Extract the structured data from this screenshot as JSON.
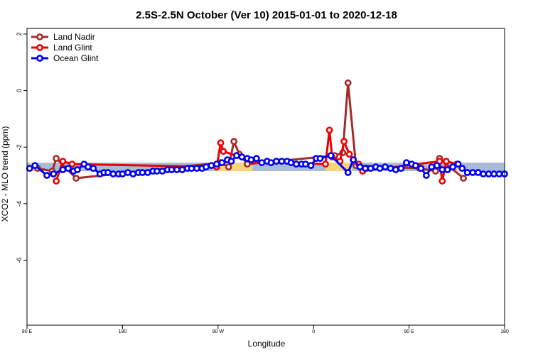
{
  "chart_data": {
    "type": "line",
    "title": "2.5S-2.5N October (Ver 10)   2015-01-01 to 2020-12-18",
    "xlabel": "Longitude",
    "ylabel": "XCO2 - MLO trend (ppm)",
    "xlim": [
      0,
      360
    ],
    "ylim": [
      -8.3,
      2.2
    ],
    "yticks": [
      2,
      0,
      -2,
      -4,
      -6
    ],
    "ytick_labels": [
      "2",
      "0",
      "-2",
      "-4",
      "-6"
    ],
    "xticks": [
      0,
      72,
      144,
      216,
      288,
      360
    ],
    "xtick_labels": [
      "90 E",
      "180",
      "90 W",
      "0",
      "90 E",
      "180"
    ],
    "legend_position": "top-left",
    "background_band": {
      "ymin": -2.85,
      "ymax": -2.55,
      "color": "#a8bcd8",
      "land_color": "#f5d77a",
      "land_segments": [
        [
          2,
          8
        ],
        [
          143,
          170
        ],
        [
          225,
          245
        ],
        [
          302,
          310
        ],
        [
          320,
          328
        ]
      ]
    },
    "series": [
      {
        "name": "Land Nadir",
        "color": "#a52a2a",
        "x": [
          8,
          19,
          22,
          37,
          146,
          152,
          156,
          160,
          166,
          232,
          238,
          242,
          248,
          296,
          308,
          311,
          329
        ],
        "y": [
          -2.75,
          -2.85,
          -2.4,
          -3.1,
          -2.55,
          -2.7,
          -1.8,
          -2.25,
          -2.6,
          -2.3,
          -2.2,
          0.27,
          -2.65,
          -2.75,
          -2.85,
          -2.4,
          -3.1
        ]
      },
      {
        "name": "Land Glint",
        "color": "#ee0000",
        "x": [
          22,
          27,
          34,
          143,
          146,
          148,
          170,
          225,
          228,
          230,
          236,
          239,
          243,
          246,
          250,
          253,
          311,
          313,
          316,
          324
        ],
        "y": [
          -3.2,
          -2.5,
          -2.6,
          -2.7,
          -1.85,
          -2.15,
          -2.5,
          -2.6,
          -1.4,
          -2.35,
          -2.5,
          -1.8,
          -2.25,
          -2.45,
          -2.6,
          -2.85,
          -2.5,
          -3.2,
          -2.5,
          -2.6
        ]
      },
      {
        "name": "Ocean Glint",
        "color": "#0000ee",
        "x": [
          2,
          6,
          15,
          20,
          27,
          31,
          35,
          38,
          43,
          46,
          50,
          55,
          58,
          61,
          65,
          69,
          72,
          76,
          80,
          84,
          87,
          91,
          95,
          98,
          102,
          106,
          109,
          113,
          117,
          121,
          124,
          128,
          132,
          135,
          139,
          143,
          147,
          151,
          154,
          158,
          162,
          166,
          169,
          173,
          177,
          181,
          184,
          188,
          192,
          196,
          199,
          203,
          207,
          210,
          214,
          218,
          221,
          229,
          242,
          246,
          251,
          255,
          259,
          263,
          266,
          270,
          274,
          278,
          282,
          286,
          290,
          293,
          297,
          301,
          305,
          309,
          313,
          317,
          321,
          325,
          328,
          332,
          336,
          340,
          344,
          348,
          352,
          356,
          360
        ],
        "y": [
          -2.75,
          -2.65,
          -3.0,
          -2.95,
          -2.8,
          -2.75,
          -2.85,
          -2.8,
          -2.6,
          -2.7,
          -2.75,
          -2.95,
          -2.9,
          -2.9,
          -2.95,
          -2.95,
          -2.95,
          -2.9,
          -2.95,
          -2.9,
          -2.9,
          -2.9,
          -2.85,
          -2.85,
          -2.85,
          -2.8,
          -2.8,
          -2.8,
          -2.8,
          -2.75,
          -2.75,
          -2.75,
          -2.75,
          -2.7,
          -2.65,
          -2.6,
          -2.55,
          -2.45,
          -2.5,
          -2.3,
          -2.35,
          -2.4,
          -2.45,
          -2.4,
          -2.55,
          -2.5,
          -2.55,
          -2.5,
          -2.5,
          -2.5,
          -2.55,
          -2.6,
          -2.6,
          -2.6,
          -2.65,
          -2.4,
          -2.4,
          -2.3,
          -2.9,
          -2.45,
          -2.7,
          -2.75,
          -2.75,
          -2.7,
          -2.75,
          -2.7,
          -2.75,
          -2.8,
          -2.75,
          -2.55,
          -2.6,
          -2.65,
          -2.75,
          -3.0,
          -2.7,
          -2.65,
          -2.8,
          -2.8,
          -2.7,
          -2.6,
          -2.75,
          -2.9,
          -2.9,
          -2.9,
          -2.95,
          -2.95,
          -2.95,
          -2.95,
          -2.95
        ]
      }
    ]
  }
}
